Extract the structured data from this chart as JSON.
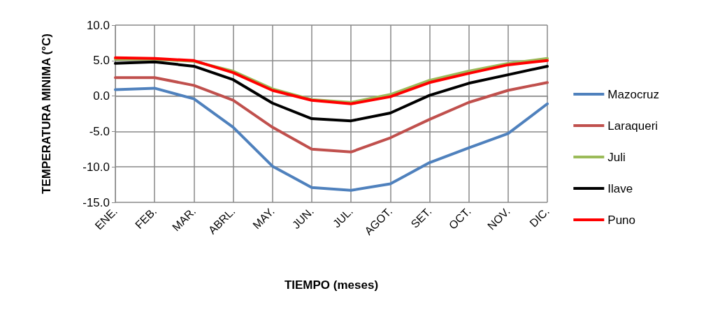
{
  "chart_data": {
    "type": "line",
    "xlabel": "TIEMPO (meses)",
    "ylabel": "TEMPERATURA MINIMA (°C)",
    "categories": [
      "ENE.",
      "FEB.",
      "MAR.",
      "ABRL.",
      "MAY.",
      "JUN.",
      "JUL.",
      "AGOT.",
      "SET.",
      "OCT.",
      "NOV.",
      "DIC."
    ],
    "ylim": [
      -15,
      10
    ],
    "yticks": [
      {
        "value": -15,
        "label": "-15.0"
      },
      {
        "value": -10,
        "label": "-10.0"
      },
      {
        "value": -5,
        "label": "-5.0"
      },
      {
        "value": 0,
        "label": "0.0"
      },
      {
        "value": 5,
        "label": "5.0"
      },
      {
        "value": 10,
        "label": "10.0"
      }
    ],
    "grid": true,
    "legend": "right",
    "marker": "none",
    "line_style": "solid",
    "series": [
      {
        "name": "Mazocruz",
        "color": "#4f81bd",
        "values": [
          0.9,
          1.1,
          -0.4,
          -4.4,
          -9.9,
          -12.9,
          -13.3,
          -12.4,
          -9.4,
          -7.3,
          -5.3,
          -1.1
        ]
      },
      {
        "name": "Laraqueri",
        "color": "#c0504d",
        "values": [
          2.6,
          2.6,
          1.5,
          -0.6,
          -4.4,
          -7.5,
          -7.9,
          -5.9,
          -3.3,
          -0.9,
          0.8,
          1.9
        ]
      },
      {
        "name": "Juli",
        "color": "#9bbb59",
        "values": [
          5.2,
          5.2,
          4.9,
          3.5,
          1.0,
          -0.5,
          -0.9,
          0.2,
          2.2,
          3.5,
          4.6,
          5.3
        ]
      },
      {
        "name": "Ilave",
        "color": "#000000",
        "values": [
          4.6,
          4.8,
          4.2,
          2.3,
          -1.0,
          -3.2,
          -3.5,
          -2.4,
          0.1,
          1.8,
          3.0,
          4.2
        ]
      },
      {
        "name": "Puno",
        "color": "#ff0000",
        "values": [
          5.4,
          5.3,
          5.0,
          3.3,
          0.8,
          -0.6,
          -1.1,
          -0.1,
          1.9,
          3.2,
          4.4,
          5.0
        ]
      }
    ]
  }
}
